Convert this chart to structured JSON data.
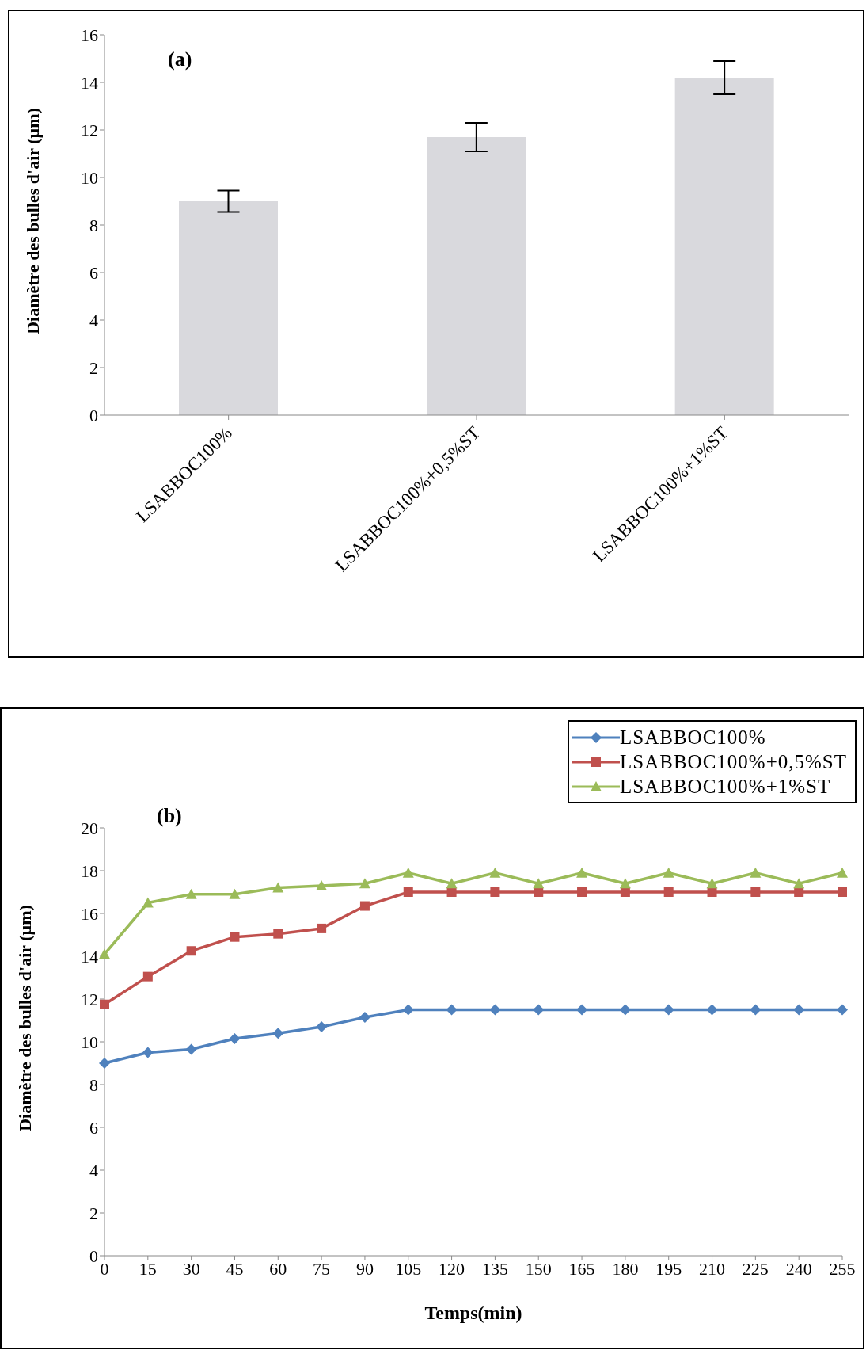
{
  "chart_data": [
    {
      "type": "bar",
      "ylabel": "Diamètre des bulles d'air (µm)",
      "annotations": [
        "(a)"
      ],
      "categories": [
        "LSABBOC100%",
        "LSABBOC100%+0,5%ST",
        "LSABBOC100%+1%ST"
      ],
      "values": [
        9,
        11.7,
        14.2
      ],
      "errors": [
        0.45,
        0.6,
        0.7
      ],
      "color": "#d9d9dd",
      "ylim": [
        0,
        16
      ],
      "yticks": [
        0,
        2,
        4,
        6,
        8,
        10,
        12,
        14,
        16
      ]
    },
    {
      "type": "line",
      "xlabel": "Temps(min)",
      "ylabel": "Diamètre des bulles d'air (µm)",
      "annotations": [
        "(b)"
      ],
      "categories": [
        "0",
        "15",
        "30",
        "45",
        "60",
        "75",
        "90",
        "105",
        "120",
        "135",
        "150",
        "165",
        "180",
        "195",
        "210",
        "225",
        "240",
        "255"
      ],
      "series": [
        {
          "name": "LSABBOC100%",
          "color": "#4f81bd",
          "marker": "diamond",
          "values": [
            9,
            9.5,
            9.65,
            10.15,
            10.4,
            10.7,
            11.15,
            11.5,
            11.5,
            11.5,
            11.5,
            11.5,
            11.5,
            11.5,
            11.5,
            11.5,
            11.5,
            11.5
          ]
        },
        {
          "name": "LSABBOC100%+0,5%ST",
          "color": "#c0504d",
          "marker": "square",
          "values": [
            11.75,
            13.05,
            14.25,
            14.9,
            15.05,
            15.3,
            16.35,
            17,
            17,
            17,
            17,
            17,
            17,
            17,
            17,
            17,
            17,
            17
          ]
        },
        {
          "name": "LSABBOC100%+1%ST",
          "color": "#9bbb59",
          "marker": "triangle",
          "values": [
            14.1,
            16.5,
            16.9,
            16.9,
            17.2,
            17.3,
            17.4,
            17.9,
            17.4,
            17.9,
            17.4,
            17.9,
            17.4,
            17.9,
            17.4,
            17.9,
            17.4,
            17.9
          ]
        }
      ],
      "ylim": [
        0,
        20
      ],
      "yticks": [
        0,
        2,
        4,
        6,
        8,
        10,
        12,
        14,
        16,
        18,
        20
      ],
      "legend": "top right",
      "line_style": "solid"
    }
  ]
}
